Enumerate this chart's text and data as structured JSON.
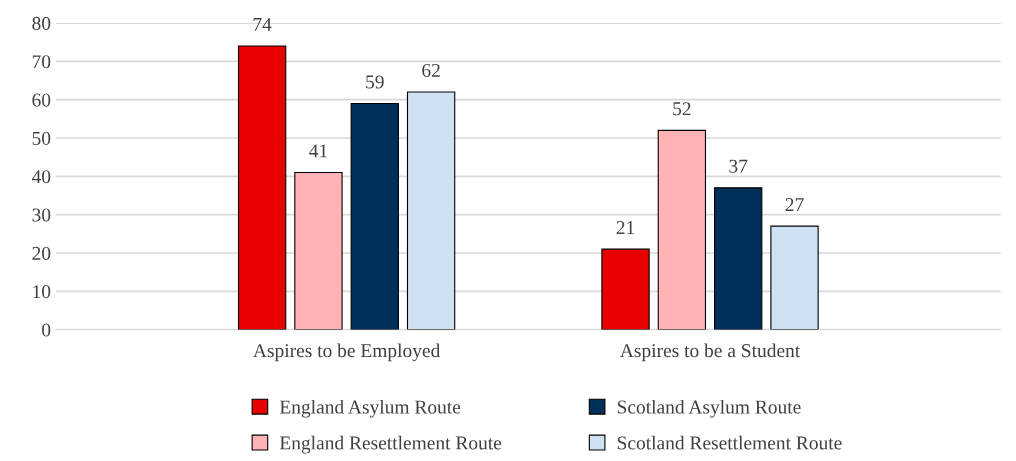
{
  "chart_data": {
    "type": "bar",
    "categories": [
      "Aspires to be Employed",
      "Aspires to be a Student"
    ],
    "series": [
      {
        "name": "England Asylum Route",
        "color": "#e60000",
        "values": [
          74,
          21
        ]
      },
      {
        "name": "England Resettlement Route",
        "color": "#ffb3b5",
        "values": [
          41,
          52
        ]
      },
      {
        "name": "Scotland Asylum Route",
        "color": "#00305a",
        "values": [
          59,
          37
        ]
      },
      {
        "name": "Scotland Resettlement Route",
        "color": "#cfe1f2",
        "values": [
          62,
          27
        ]
      }
    ],
    "ylim": [
      0,
      80
    ],
    "yticks": [
      0,
      10,
      20,
      30,
      40,
      50,
      60,
      70,
      80
    ],
    "grid": "y",
    "legend": "bottom",
    "data_labels": true
  }
}
